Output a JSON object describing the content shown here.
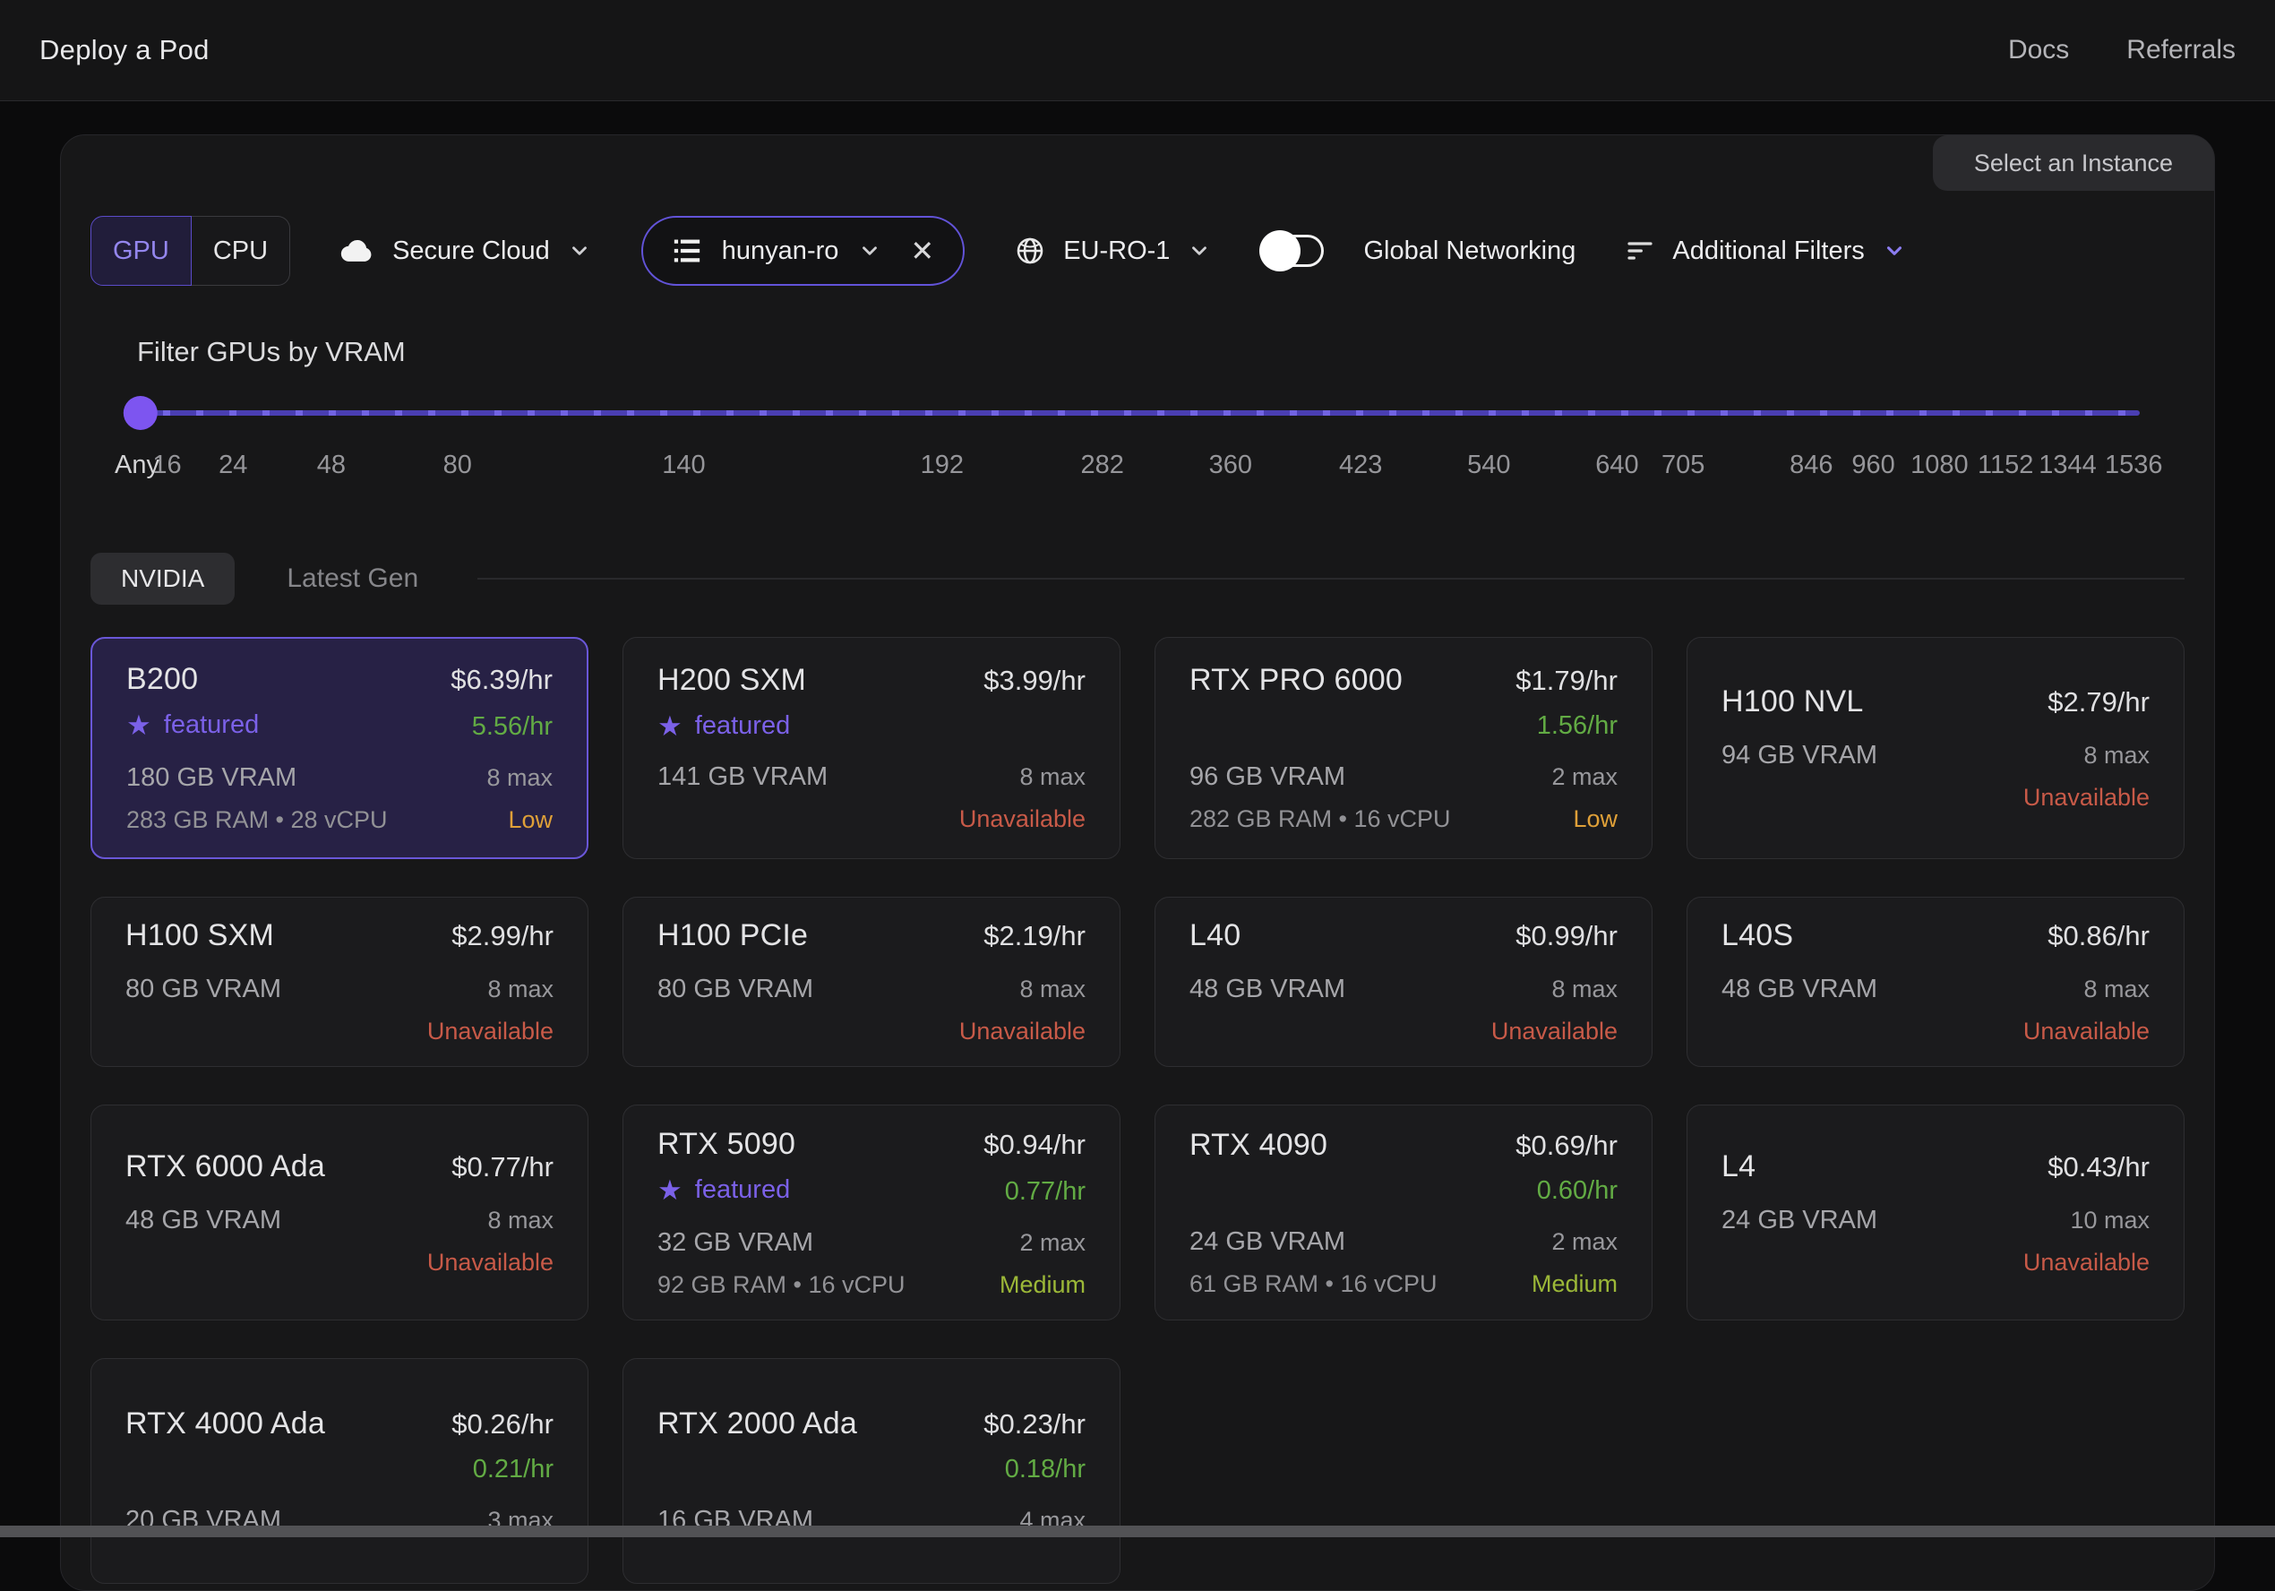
{
  "header": {
    "title": "Deploy a Pod",
    "nav": [
      {
        "label": "Docs"
      },
      {
        "label": "Referrals"
      }
    ]
  },
  "panel": {
    "select_instance_label": "Select an Instance",
    "filters": {
      "gpu_cpu": {
        "options": [
          "GPU",
          "CPU"
        ],
        "selected": "GPU"
      },
      "cloud_type": {
        "label": "Secure Cloud"
      },
      "template": {
        "label": "hunyan-ro"
      },
      "region": {
        "label": "EU-RO-1"
      },
      "global_networking": {
        "label": "Global Networking",
        "enabled": false
      },
      "additional_filters": {
        "label": "Additional Filters"
      }
    },
    "vram_filter": {
      "title": "Filter GPUs by VRAM",
      "selected": "Any",
      "ticks": [
        {
          "label": "Any",
          "pct": 0
        },
        {
          "label": "16",
          "pct": 1.5
        },
        {
          "label": "24",
          "pct": 4.8
        },
        {
          "label": "48",
          "pct": 9.7
        },
        {
          "label": "80",
          "pct": 16.0
        },
        {
          "label": "140",
          "pct": 27.3
        },
        {
          "label": "192",
          "pct": 40.2
        },
        {
          "label": "282",
          "pct": 48.2
        },
        {
          "label": "360",
          "pct": 54.6
        },
        {
          "label": "423",
          "pct": 61.1
        },
        {
          "label": "540",
          "pct": 67.5
        },
        {
          "label": "640",
          "pct": 73.9
        },
        {
          "label": "705",
          "pct": 77.2
        },
        {
          "label": "846",
          "pct": 83.6
        },
        {
          "label": "960",
          "pct": 86.7
        },
        {
          "label": "1080",
          "pct": 90.0
        },
        {
          "label": "1152",
          "pct": 93.3
        },
        {
          "label": "1344",
          "pct": 96.4
        },
        {
          "label": "1536",
          "pct": 99.7
        }
      ]
    },
    "tabs": {
      "brand": "NVIDIA",
      "latest": "Latest Gen"
    },
    "featured_label": "featured",
    "gpus": [
      {
        "name": "B200",
        "price": "$6.39/hr",
        "featured": true,
        "discount": "5.56/hr",
        "vram": "180 GB VRAM",
        "max": "8 max",
        "ram": "283 GB RAM • 28 vCPU",
        "status": "Low",
        "status_level": "low",
        "selected": true
      },
      {
        "name": "H200 SXM",
        "price": "$3.99/hr",
        "featured": true,
        "discount": null,
        "vram": "141 GB VRAM",
        "max": "8 max",
        "ram": null,
        "status": "Unavailable",
        "status_level": "unavailable",
        "selected": false
      },
      {
        "name": "RTX PRO 6000",
        "price": "$1.79/hr",
        "featured": false,
        "discount": "1.56/hr",
        "vram": "96 GB VRAM",
        "max": "2 max",
        "ram": "282 GB RAM • 16 vCPU",
        "status": "Low",
        "status_level": "low",
        "selected": false
      },
      {
        "name": "H100 NVL",
        "price": "$2.79/hr",
        "featured": false,
        "discount": null,
        "vram": "94 GB VRAM",
        "max": "8 max",
        "ram": null,
        "status": "Unavailable",
        "status_level": "unavailable",
        "selected": false
      },
      {
        "name": "H100 SXM",
        "price": "$2.99/hr",
        "featured": false,
        "discount": null,
        "vram": "80 GB VRAM",
        "max": "8 max",
        "ram": null,
        "status": "Unavailable",
        "status_level": "unavailable",
        "selected": false
      },
      {
        "name": "H100 PCIe",
        "price": "$2.19/hr",
        "featured": false,
        "discount": null,
        "vram": "80 GB VRAM",
        "max": "8 max",
        "ram": null,
        "status": "Unavailable",
        "status_level": "unavailable",
        "selected": false
      },
      {
        "name": "L40",
        "price": "$0.99/hr",
        "featured": false,
        "discount": null,
        "vram": "48 GB VRAM",
        "max": "8 max",
        "ram": null,
        "status": "Unavailable",
        "status_level": "unavailable",
        "selected": false
      },
      {
        "name": "L40S",
        "price": "$0.86/hr",
        "featured": false,
        "discount": null,
        "vram": "48 GB VRAM",
        "max": "8 max",
        "ram": null,
        "status": "Unavailable",
        "status_level": "unavailable",
        "selected": false
      },
      {
        "name": "RTX 6000 Ada",
        "price": "$0.77/hr",
        "featured": false,
        "discount": null,
        "vram": "48 GB VRAM",
        "max": "8 max",
        "ram": null,
        "status": "Unavailable",
        "status_level": "unavailable",
        "selected": false
      },
      {
        "name": "RTX 5090",
        "price": "$0.94/hr",
        "featured": true,
        "discount": "0.77/hr",
        "vram": "32 GB VRAM",
        "max": "2 max",
        "ram": "92 GB RAM • 16 vCPU",
        "status": "Medium",
        "status_level": "medium",
        "selected": false
      },
      {
        "name": "RTX 4090",
        "price": "$0.69/hr",
        "featured": false,
        "discount": "0.60/hr",
        "vram": "24 GB VRAM",
        "max": "2 max",
        "ram": "61 GB RAM • 16 vCPU",
        "status": "Medium",
        "status_level": "medium",
        "selected": false
      },
      {
        "name": "L4",
        "price": "$0.43/hr",
        "featured": false,
        "discount": null,
        "vram": "24 GB VRAM",
        "max": "10 max",
        "ram": null,
        "status": "Unavailable",
        "status_level": "unavailable",
        "selected": false
      },
      {
        "name": "RTX 4000 Ada",
        "price": "$0.26/hr",
        "featured": false,
        "discount": "0.21/hr",
        "vram": "20 GB VRAM",
        "max": "3 max",
        "ram": null,
        "status": null,
        "status_level": null,
        "selected": false
      },
      {
        "name": "RTX 2000 Ada",
        "price": "$0.23/hr",
        "featured": false,
        "discount": "0.18/hr",
        "vram": "16 GB VRAM",
        "max": "4 max",
        "ram": null,
        "status": null,
        "status_level": null,
        "selected": false
      }
    ]
  },
  "colors": {
    "accent_purple": "#6a57d8",
    "featured_purple": "#7b61e8",
    "discount_green": "#62ab44",
    "status_low": "#dfa038",
    "status_medium": "#9cb838",
    "status_unavailable": "#c85a48",
    "slider_track": "#4a3eb2",
    "slider_thumb": "#7d55f0"
  }
}
